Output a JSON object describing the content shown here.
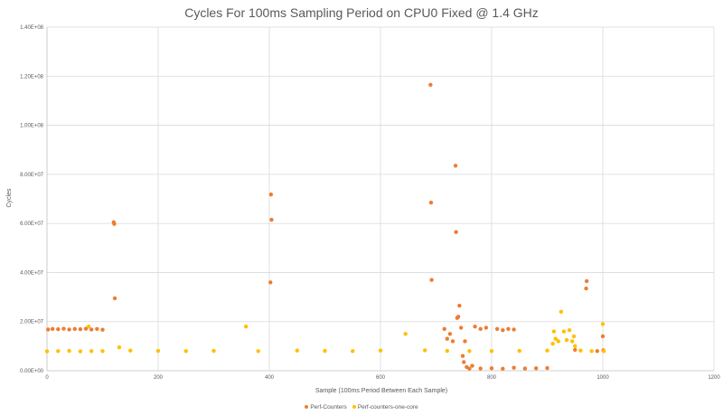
{
  "chart_data": {
    "type": "scatter",
    "title": "Cycles For 100ms Sampling Period on CPU0 Fixed @ 1.4 GHz",
    "xlabel": "Sample (100ms Period Between Each Sample)",
    "ylabel": "Cycles",
    "xlim": [
      0,
      1200
    ],
    "ylim": [
      0,
      140000000
    ],
    "x_ticks": [
      "0",
      "200",
      "400",
      "600",
      "800",
      "1000",
      "1200"
    ],
    "y_ticks": [
      "0.00E+00",
      "2.00E+07",
      "4.00E+07",
      "6.00E+07",
      "8.00E+07",
      "1.00E+08",
      "1.20E+08",
      "1.40E+08"
    ],
    "grid": true,
    "legend_position": "bottom",
    "series": [
      {
        "name": "Perf-Counters",
        "color": "#ED7D31",
        "points": [
          [
            2,
            16800000
          ],
          [
            10,
            17000000
          ],
          [
            20,
            16900000
          ],
          [
            30,
            17100000
          ],
          [
            40,
            16800000
          ],
          [
            50,
            17000000
          ],
          [
            60,
            16900000
          ],
          [
            70,
            17100000
          ],
          [
            80,
            16800000
          ],
          [
            90,
            17000000
          ],
          [
            100,
            16700000
          ],
          [
            120,
            60500000
          ],
          [
            121,
            59800000
          ],
          [
            122,
            29500000
          ],
          [
            402,
            36000000
          ],
          [
            403,
            71800000
          ],
          [
            404,
            61500000
          ],
          [
            690,
            116500000
          ],
          [
            691,
            68500000
          ],
          [
            692,
            37000000
          ],
          [
            715,
            17000000
          ],
          [
            720,
            13000000
          ],
          [
            725,
            15000000
          ],
          [
            730,
            12000000
          ],
          [
            735,
            83500000
          ],
          [
            736,
            56500000
          ],
          [
            738,
            21500000
          ],
          [
            740,
            22000000
          ],
          [
            742,
            26500000
          ],
          [
            745,
            17500000
          ],
          [
            748,
            6000000
          ],
          [
            750,
            3500000
          ],
          [
            752,
            12000000
          ],
          [
            755,
            1500000
          ],
          [
            760,
            800000
          ],
          [
            765,
            2000000
          ],
          [
            770,
            18000000
          ],
          [
            780,
            17000000
          ],
          [
            790,
            17500000
          ],
          [
            810,
            17000000
          ],
          [
            820,
            16500000
          ],
          [
            830,
            17000000
          ],
          [
            840,
            16800000
          ],
          [
            780,
            900000
          ],
          [
            800,
            1000000
          ],
          [
            820,
            800000
          ],
          [
            840,
            1200000
          ],
          [
            860,
            900000
          ],
          [
            880,
            1000000
          ],
          [
            900,
            1100000
          ],
          [
            950,
            8500000
          ],
          [
            970,
            33500000
          ],
          [
            971,
            36500000
          ],
          [
            990,
            8000000
          ],
          [
            1000,
            14000000
          ],
          [
            1001,
            8300000
          ]
        ]
      },
      {
        "name": "Perf-counters-one-core",
        "color": "#FFC000",
        "points": [
          [
            0,
            7900000
          ],
          [
            20,
            8000000
          ],
          [
            40,
            8100000
          ],
          [
            60,
            7900000
          ],
          [
            75,
            18000000
          ],
          [
            80,
            8000000
          ],
          [
            100,
            8000000
          ],
          [
            130,
            9500000
          ],
          [
            150,
            8200000
          ],
          [
            200,
            8100000
          ],
          [
            250,
            8000000
          ],
          [
            300,
            8100000
          ],
          [
            358,
            18000000
          ],
          [
            380,
            8000000
          ],
          [
            450,
            8200000
          ],
          [
            500,
            8100000
          ],
          [
            550,
            8000000
          ],
          [
            600,
            8200000
          ],
          [
            645,
            15000000
          ],
          [
            680,
            8300000
          ],
          [
            720,
            8100000
          ],
          [
            760,
            8000000
          ],
          [
            800,
            8000000
          ],
          [
            850,
            8100000
          ],
          [
            900,
            8200000
          ],
          [
            910,
            11000000
          ],
          [
            912,
            16000000
          ],
          [
            915,
            13000000
          ],
          [
            920,
            12000000
          ],
          [
            925,
            24000000
          ],
          [
            930,
            16000000
          ],
          [
            935,
            12500000
          ],
          [
            940,
            16500000
          ],
          [
            945,
            12000000
          ],
          [
            948,
            14000000
          ],
          [
            950,
            10000000
          ],
          [
            960,
            8200000
          ],
          [
            980,
            8000000
          ],
          [
            1000,
            19000000
          ],
          [
            1002,
            8000000
          ]
        ]
      }
    ]
  }
}
